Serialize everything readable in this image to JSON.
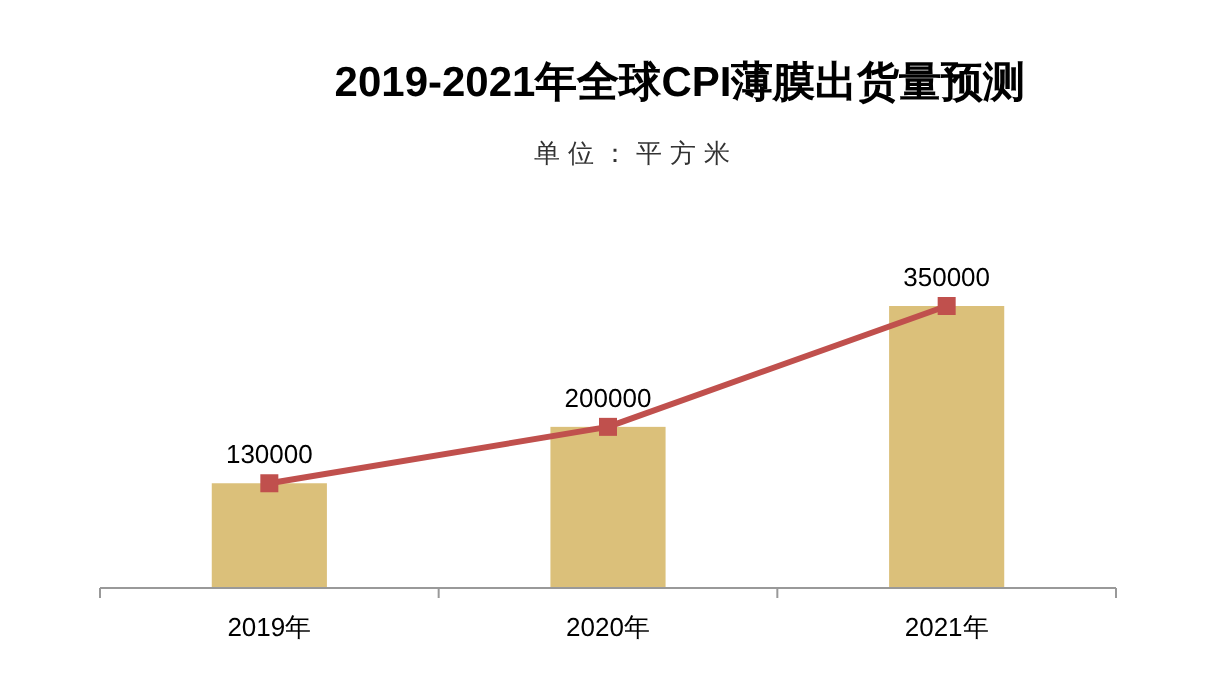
{
  "chart_data": {
    "type": "bar",
    "title": "2019-2021年全球CPI薄膜出货量预测",
    "subtitle": "单位：平方米",
    "categories": [
      "2019年",
      "2020年",
      "2021年"
    ],
    "series": [
      {
        "color": "#dbc07a",
        "values": [
          130000,
          200000,
          350000
        ]
      },
      {
        "type": "line",
        "color": "#c0504d",
        "values": [
          130000,
          200000,
          350000
        ],
        "marker": "square",
        "value_labels": [
          "130000",
          "200000",
          "350000"
        ]
      }
    ]
  }
}
